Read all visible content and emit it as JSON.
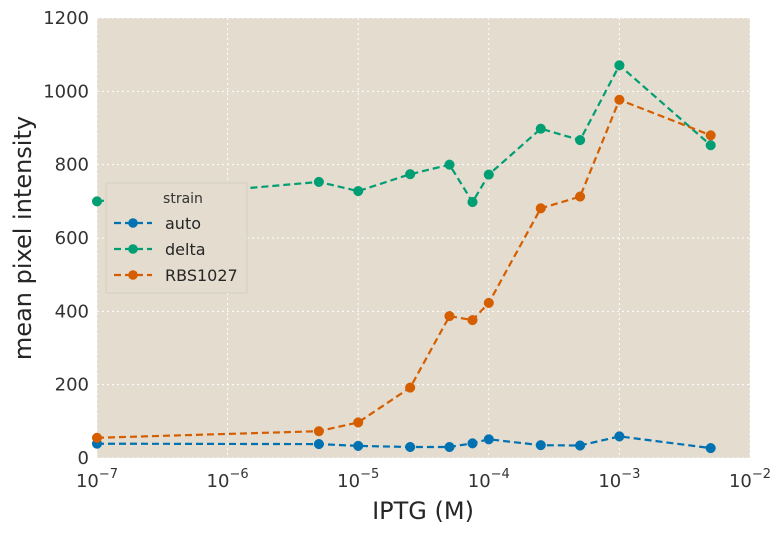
{
  "chart_data": {
    "type": "line",
    "title": "",
    "xlabel": "IPTG (M)",
    "ylabel": "mean pixel intensity",
    "xscale": "log",
    "xlim": [
      1e-07,
      0.01
    ],
    "ylim": [
      0,
      1200
    ],
    "grid": true,
    "legend": {
      "title": "strain",
      "placement": "center-left"
    },
    "x_ticks": [
      {
        "value": 1e-07,
        "base": "10",
        "exp": "−7"
      },
      {
        "value": 1e-06,
        "base": "10",
        "exp": "−6"
      },
      {
        "value": 1e-05,
        "base": "10",
        "exp": "−5"
      },
      {
        "value": 0.0001,
        "base": "10",
        "exp": "−4"
      },
      {
        "value": 0.001,
        "base": "10",
        "exp": "−3"
      },
      {
        "value": 0.01,
        "base": "10",
        "exp": "−2"
      }
    ],
    "y_ticks": [
      0,
      200,
      400,
      600,
      800,
      1000,
      1200
    ],
    "x": [
      1e-07,
      5e-06,
      1e-05,
      2.5e-05,
      5e-05,
      7.5e-05,
      0.0001,
      0.00025,
      0.0005,
      0.001,
      0.005
    ],
    "series": [
      {
        "name": "auto",
        "color": "#0072b2",
        "values": [
          39,
          38,
          33,
          30,
          30,
          40,
          51,
          35,
          34,
          59,
          27
        ]
      },
      {
        "name": "delta",
        "color": "#009e73",
        "values": [
          700,
          753,
          728,
          774,
          800,
          698,
          773,
          898,
          867,
          1071,
          853
        ]
      },
      {
        "name": "RBS1027",
        "color": "#d55e00",
        "values": [
          55,
          73,
          97,
          192,
          387,
          376,
          423,
          681,
          713,
          977,
          880
        ]
      }
    ]
  }
}
